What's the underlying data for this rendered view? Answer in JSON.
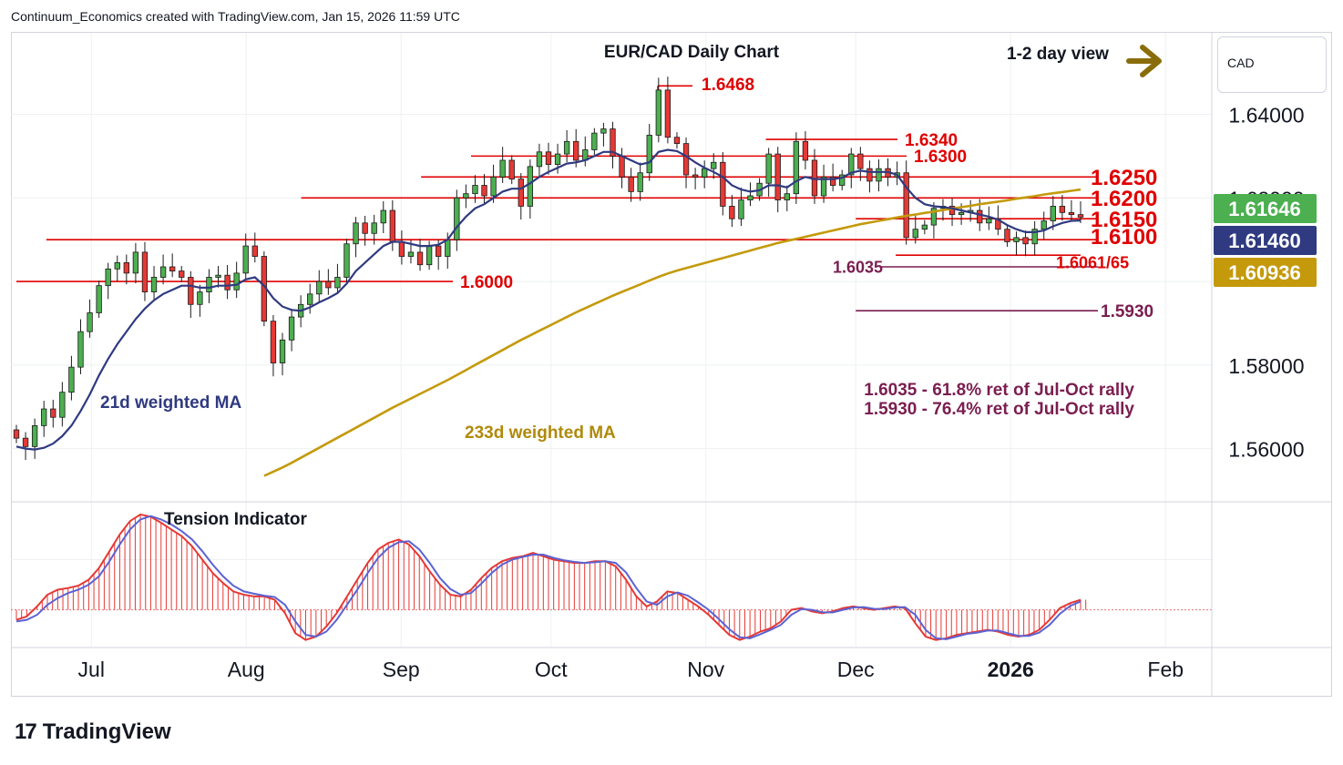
{
  "header": {
    "credit": "Continuum_Economics created with TradingView.com, Jan 15, 2026 11:59 UTC"
  },
  "brand": {
    "logo_text": "TradingView",
    "logo_mark": "17"
  },
  "unit_label": "CAD",
  "chart_data": {
    "type": "candlestick",
    "title": "EUR/CAD Daily Chart",
    "view_label": "1-2 day view",
    "view_icon": "right-arrow-icon",
    "y_ticks": [
      "1.64000",
      "1.62000",
      "1.58000",
      "1.56000"
    ],
    "y_tick_values": [
      1.64,
      1.62,
      1.58,
      1.56
    ],
    "ylim": [
      1.5475,
      1.6595
    ],
    "x_ticks": [
      "Jul",
      "Aug",
      "Sep",
      "Oct",
      "Nov",
      "Dec",
      "2026",
      "Feb"
    ],
    "date_range": [
      "2025-06-16",
      "2026-01-15"
    ],
    "price_badges": [
      {
        "label": "1.61646",
        "value": 1.61646,
        "color": "#4caf50"
      },
      {
        "label": "1.61460",
        "value": 1.6146,
        "color": "#2f3a80"
      },
      {
        "label": "1.60936",
        "value": 1.60936,
        "color": "#c49a0c"
      }
    ],
    "levels": [
      {
        "label": "1.6468",
        "value": 1.6468,
        "from": "2025-10-16",
        "to": "2025-10-24",
        "color": "#e00000"
      },
      {
        "label": "1.6340",
        "value": 1.634,
        "from": "2025-11-13",
        "to": "2025-12-03",
        "color": "#e00000"
      },
      {
        "label": "1.6300",
        "value": 1.63,
        "from": "2025-09-15",
        "to": "2025-12-03",
        "color": "#e00000"
      },
      {
        "label": "1.6250",
        "value": 1.625,
        "from": "2025-09-05",
        "to": "2026-01-15",
        "color": "#e00000"
      },
      {
        "label": "1.6200",
        "value": 1.62,
        "from": "2025-08-12",
        "to": "2026-01-15",
        "color": "#e00000"
      },
      {
        "label": "1.6150",
        "value": 1.615,
        "from": "2025-12-01",
        "to": "2026-01-15",
        "color": "#e00000"
      },
      {
        "label": "1.6100",
        "value": 1.61,
        "from": "2025-06-22",
        "to": "2026-01-15",
        "color": "#e00000"
      },
      {
        "label": "1.6061/65",
        "value": 1.6063,
        "from": "2025-12-09",
        "to": "2026-01-15",
        "color": "#e00000"
      },
      {
        "label": "1.6035",
        "value": 1.6035,
        "from": "2025-12-06",
        "to": "2026-01-15",
        "color": "#7a1e50"
      },
      {
        "label": "1.6000",
        "value": 1.6,
        "from": "2025-06-16",
        "to": "2025-09-06",
        "color": "#e00000"
      },
      {
        "label": "1.5930",
        "value": 1.593,
        "from": "2025-12-01",
        "to": "2026-01-15",
        "color": "#7a1e50"
      }
    ],
    "annotations": [
      "1.6035 - 61.8% ret of Jul-Oct rally",
      "1.5930 - 76.4% ret of Jul-Oct rally"
    ],
    "ma_labels": {
      "ma21": "21d weighted MA",
      "ma233": "233d weighted MA"
    },
    "closes": [
      1.5625,
      1.5605,
      1.5655,
      1.5695,
      1.5675,
      1.5735,
      1.5795,
      1.588,
      1.5925,
      1.599,
      1.603,
      1.6045,
      1.602,
      1.607,
      1.5975,
      1.601,
      1.6035,
      1.6025,
      1.601,
      1.5945,
      1.5975,
      1.601,
      1.6015,
      1.598,
      1.602,
      1.6085,
      1.606,
      1.5905,
      1.5805,
      1.586,
      1.5915,
      1.5945,
      1.597,
      1.6,
      1.5985,
      1.601,
      1.609,
      1.614,
      1.6115,
      1.614,
      1.617,
      1.6095,
      1.606,
      1.607,
      1.604,
      1.6085,
      1.606,
      1.61,
      1.62,
      1.621,
      1.623,
      1.6205,
      1.625,
      1.629,
      1.6245,
      1.618,
      1.6275,
      1.631,
      1.628,
      1.6305,
      1.6335,
      1.629,
      1.6315,
      1.6355,
      1.6365,
      1.63,
      1.625,
      1.6215,
      1.626,
      1.635,
      1.6458,
      1.6345,
      1.633,
      1.6255,
      1.625,
      1.627,
      1.6285,
      1.618,
      1.615,
      1.6195,
      1.6205,
      1.6235,
      1.6305,
      1.6195,
      1.621,
      1.6335,
      1.629,
      1.6205,
      1.625,
      1.623,
      1.6255,
      1.6305,
      1.627,
      1.624,
      1.627,
      1.625,
      1.626,
      1.6105,
      1.6125,
      1.6135,
      1.6175,
      1.618,
      1.616,
      1.6165,
      1.617,
      1.614,
      1.615,
      1.6125,
      1.6095,
      1.6105,
      1.609,
      1.6125,
      1.6145,
      1.618,
      1.6165,
      1.616,
      1.6154
    ],
    "ma21": [
      1.5605,
      1.56,
      1.5598,
      1.5602,
      1.5612,
      1.563,
      1.5655,
      1.569,
      1.573,
      1.5775,
      1.5815,
      1.585,
      1.588,
      1.591,
      1.5935,
      1.5955,
      1.597,
      1.598,
      1.599,
      1.599,
      1.5985,
      1.5985,
      1.599,
      1.599,
      1.5992,
      1.6005,
      1.601,
      1.599,
      1.596,
      1.594,
      1.5932,
      1.593,
      1.5938,
      1.595,
      1.596,
      1.5972,
      1.5995,
      1.6025,
      1.6045,
      1.6065,
      1.6085,
      1.6095,
      1.6095,
      1.609,
      1.6085,
      1.6085,
      1.6088,
      1.61,
      1.613,
      1.6155,
      1.6175,
      1.6185,
      1.62,
      1.6215,
      1.6222,
      1.6222,
      1.6235,
      1.625,
      1.6262,
      1.6272,
      1.6282,
      1.6285,
      1.629,
      1.63,
      1.631,
      1.631,
      1.63,
      1.629,
      1.628,
      1.6285,
      1.631,
      1.6315,
      1.6312,
      1.63,
      1.6285,
      1.6272,
      1.6262,
      1.625,
      1.623,
      1.622,
      1.6215,
      1.6218,
      1.623,
      1.623,
      1.6225,
      1.624,
      1.625,
      1.6245,
      1.6245,
      1.6245,
      1.6248,
      1.626,
      1.6265,
      1.6262,
      1.6262,
      1.6262,
      1.6255,
      1.6225,
      1.62,
      1.6185,
      1.618,
      1.6178,
      1.6175,
      1.617,
      1.6165,
      1.616,
      1.6155,
      1.6148,
      1.6135,
      1.6125,
      1.6118,
      1.6118,
      1.6122,
      1.6132,
      1.614,
      1.6145,
      1.6146
    ],
    "ma233": [
      null,
      null,
      null,
      null,
      null,
      null,
      null,
      null,
      null,
      null,
      null,
      null,
      null,
      null,
      null,
      null,
      null,
      null,
      null,
      null,
      null,
      null,
      null,
      null,
      null,
      null,
      null,
      1.5535,
      1.5545,
      1.5555,
      1.5566,
      1.5578,
      1.559,
      1.5602,
      1.5614,
      1.5626,
      1.5638,
      1.565,
      1.5662,
      1.5674,
      1.5686,
      1.5698,
      1.5709,
      1.572,
      1.5731,
      1.5742,
      1.5753,
      1.5764,
      1.5776,
      1.5788,
      1.58,
      1.5812,
      1.5824,
      1.5836,
      1.5848,
      1.586,
      1.5871,
      1.5882,
      1.5893,
      1.5904,
      1.5915,
      1.5926,
      1.5936,
      1.5946,
      1.5956,
      1.5966,
      1.5975,
      1.5984,
      1.5993,
      1.6002,
      1.6011,
      1.6019,
      1.6026,
      1.6032,
      1.6038,
      1.6044,
      1.605,
      1.6056,
      1.6062,
      1.6068,
      1.6074,
      1.608,
      1.6086,
      1.6092,
      1.6097,
      1.6102,
      1.6107,
      1.6112,
      1.6117,
      1.6122,
      1.6127,
      1.6132,
      1.6137,
      1.6141,
      1.6145,
      1.6149,
      1.6153,
      1.6157,
      1.616,
      1.6164,
      1.6167,
      1.6171,
      1.6174,
      1.6178,
      1.6181,
      1.6185,
      1.6188,
      1.6191,
      1.6194,
      1.6198,
      1.6201,
      1.6204,
      1.6208,
      1.6211,
      1.6214,
      1.6217,
      1.622
    ],
    "tension_indicator": {
      "label": "Tension Indicator",
      "values": [
        -0.3,
        -0.2,
        0.1,
        0.45,
        0.6,
        0.65,
        0.72,
        0.9,
        1.25,
        1.75,
        2.25,
        2.65,
        2.85,
        2.78,
        2.6,
        2.4,
        2.2,
        1.9,
        1.5,
        1.1,
        0.8,
        0.55,
        0.45,
        0.4,
        0.4,
        0.3,
        -0.1,
        -0.7,
        -0.9,
        -0.8,
        -0.5,
        -0.1,
        0.4,
        0.9,
        1.4,
        1.8,
        2.0,
        2.1,
        1.95,
        1.6,
        1.15,
        0.75,
        0.45,
        0.4,
        0.6,
        0.95,
        1.25,
        1.45,
        1.55,
        1.6,
        1.7,
        1.6,
        1.5,
        1.45,
        1.4,
        1.4,
        1.45,
        1.45,
        1.3,
        0.9,
        0.4,
        0.1,
        0.25,
        0.55,
        0.5,
        0.3,
        0.1,
        -0.15,
        -0.45,
        -0.75,
        -0.9,
        -0.8,
        -0.65,
        -0.55,
        -0.35,
        0.0,
        0.05,
        -0.05,
        -0.1,
        -0.05,
        0.05,
        0.1,
        0.05,
        0.0,
        0.05,
        0.1,
        0.05,
        -0.4,
        -0.8,
        -0.9,
        -0.85,
        -0.75,
        -0.7,
        -0.65,
        -0.6,
        -0.65,
        -0.75,
        -0.8,
        -0.75,
        -0.6,
        -0.3,
        0.05,
        0.2,
        0.3
      ],
      "signal": [
        -0.35,
        -0.3,
        -0.15,
        0.15,
        0.35,
        0.5,
        0.6,
        0.75,
        1.0,
        1.45,
        1.95,
        2.4,
        2.7,
        2.8,
        2.7,
        2.55,
        2.35,
        2.1,
        1.75,
        1.35,
        1.0,
        0.72,
        0.55,
        0.48,
        0.42,
        0.38,
        0.15,
        -0.35,
        -0.75,
        -0.8,
        -0.65,
        -0.3,
        0.15,
        0.6,
        1.1,
        1.55,
        1.85,
        2.02,
        2.05,
        1.8,
        1.4,
        0.95,
        0.62,
        0.45,
        0.5,
        0.78,
        1.1,
        1.35,
        1.5,
        1.58,
        1.65,
        1.65,
        1.55,
        1.48,
        1.43,
        1.4,
        1.42,
        1.45,
        1.4,
        1.12,
        0.65,
        0.25,
        0.15,
        0.4,
        0.52,
        0.42,
        0.22,
        0.0,
        -0.28,
        -0.58,
        -0.82,
        -0.85,
        -0.73,
        -0.6,
        -0.45,
        -0.15,
        0.02,
        0.0,
        -0.07,
        -0.08,
        0.0,
        0.07,
        0.08,
        0.03,
        0.02,
        0.07,
        0.08,
        -0.15,
        -0.6,
        -0.85,
        -0.88,
        -0.8,
        -0.72,
        -0.68,
        -0.62,
        -0.62,
        -0.7,
        -0.78,
        -0.78,
        -0.68,
        -0.45,
        -0.12,
        0.12,
        0.25
      ]
    }
  }
}
